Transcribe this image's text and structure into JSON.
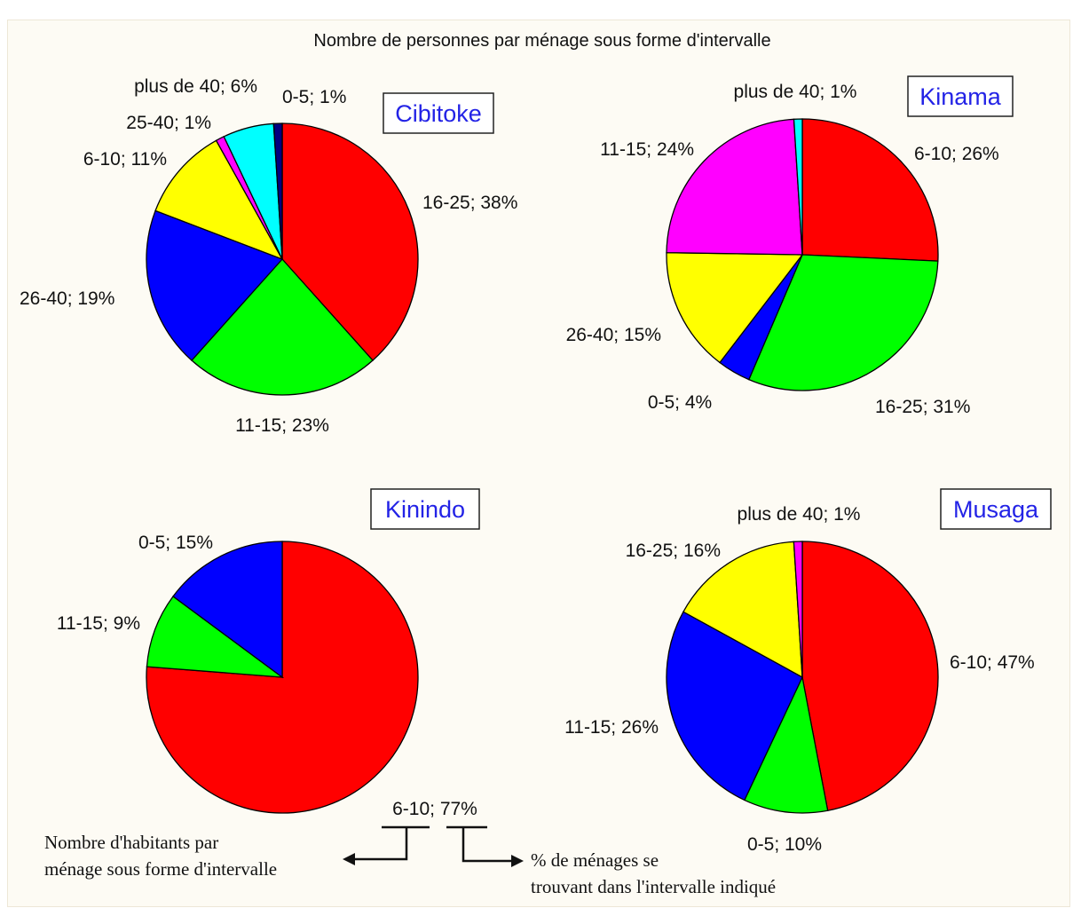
{
  "title": "Nombre de personnes par ménage sous forme d'intervalle",
  "chart_data": [
    {
      "type": "pie",
      "title": "Cibitoke",
      "slices": [
        {
          "label": "16-25",
          "value": 38,
          "text": "16-25; 38%",
          "color": "#ff0000"
        },
        {
          "label": "11-15",
          "value": 23,
          "text": "11-15; 23%",
          "color": "#00ff00"
        },
        {
          "label": "26-40",
          "value": 19,
          "text": "26-40; 19%",
          "color": "#0000ff"
        },
        {
          "label": "6-10",
          "value": 11,
          "text": "6-10; 11%",
          "color": "#ffff00"
        },
        {
          "label": "25-40",
          "value": 1,
          "text": "25-40; 1%",
          "color": "#ff00ff"
        },
        {
          "label": "plus de 40",
          "value": 6,
          "text": "plus de 40; 6%",
          "color": "#00ffff"
        },
        {
          "label": "0-5",
          "value": 1,
          "text": "0-5; 1%",
          "color": "#000080"
        }
      ]
    },
    {
      "type": "pie",
      "title": "Kinama",
      "slices": [
        {
          "label": "6-10",
          "value": 26,
          "text": "6-10; 26%",
          "color": "#ff0000"
        },
        {
          "label": "16-25",
          "value": 31,
          "text": "16-25; 31%",
          "color": "#00ff00"
        },
        {
          "label": "0-5",
          "value": 4,
          "text": "0-5; 4%",
          "color": "#0000ff"
        },
        {
          "label": "26-40",
          "value": 15,
          "text": "26-40; 15%",
          "color": "#ffff00"
        },
        {
          "label": "11-15",
          "value": 24,
          "text": "11-15; 24%",
          "color": "#ff00ff"
        },
        {
          "label": "plus de 40",
          "value": 1,
          "text": "plus de 40; 1%",
          "color": "#00ffff"
        }
      ]
    },
    {
      "type": "pie",
      "title": "Kinindo",
      "slices": [
        {
          "label": "6-10",
          "value": 77,
          "text": "6-10; 77%",
          "color": "#ff0000"
        },
        {
          "label": "11-15",
          "value": 9,
          "text": "11-15; 9%",
          "color": "#00ff00"
        },
        {
          "label": "0-5",
          "value": 15,
          "text": "0-5; 15%",
          "color": "#0000ff"
        }
      ]
    },
    {
      "type": "pie",
      "title": "Musaga",
      "slices": [
        {
          "label": "6-10",
          "value": 47,
          "text": "6-10; 47%",
          "color": "#ff0000"
        },
        {
          "label": "0-5",
          "value": 10,
          "text": "0-5; 10%",
          "color": "#00ff00"
        },
        {
          "label": "11-15",
          "value": 26,
          "text": "11-15; 26%",
          "color": "#0000ff"
        },
        {
          "label": "16-25",
          "value": 16,
          "text": "16-25; 16%",
          "color": "#ffff00"
        },
        {
          "label": "plus de 40",
          "value": 1,
          "text": "plus de 40; 1%",
          "color": "#ff00ff"
        }
      ]
    }
  ],
  "annotation": {
    "left_line1": "Nombre d'habitants par",
    "left_line2": "ménage sous forme d'intervalle",
    "right_line1": "% de ménages se",
    "right_line2": "trouvant dans l'intervalle indiqué"
  }
}
